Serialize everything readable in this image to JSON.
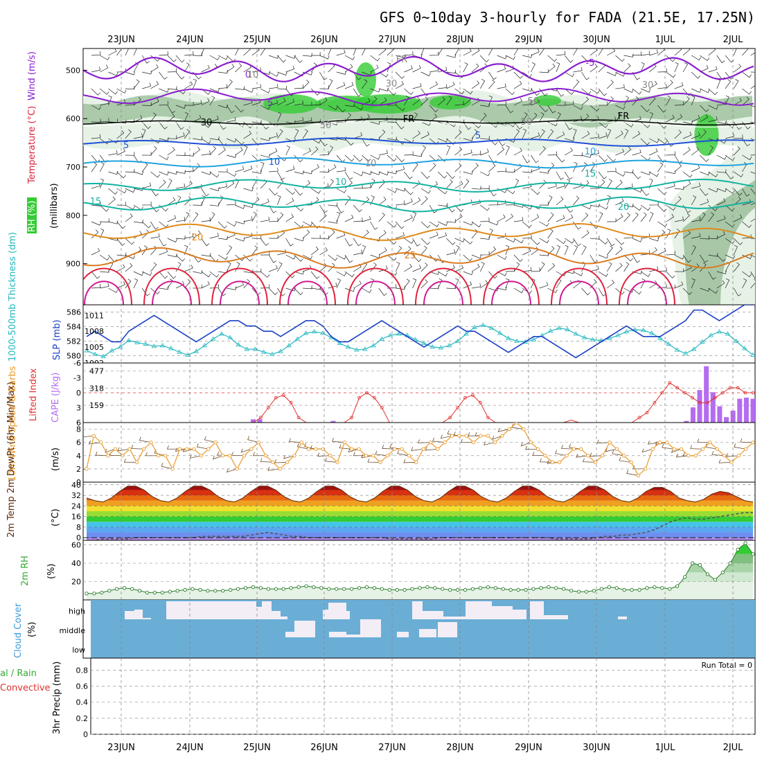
{
  "title": "GFS 0~10day 3-hourly for FADA (21.5E, 17.25N)",
  "dates": [
    "23JUN",
    "24JUN",
    "25JUN",
    "26JUN",
    "27JUN",
    "28JUN",
    "29JUN",
    "30JUN",
    "1JUL",
    "2JUL"
  ],
  "colors": {
    "rh_light": "#e6f2e6",
    "rh_mid": "#9bbf9b",
    "rh_dark": "#5f8f5f",
    "rh_bright": "#33cc33",
    "temp_neg": "#8a1ccf",
    "temp_0_10": "#1f4fd6",
    "temp_15_20": "#11b3a0",
    "temp_25_30": "#e08a1a",
    "temp_35": "#e0203a",
    "thickness": "#22b8c0",
    "slp": "#1a3fc4",
    "lifted": "#e03030",
    "cape": "#b46cf0",
    "wind": "#e89a2a",
    "cloud_bg": "#6aaed6",
    "cloud_fill": "#f3eef5"
  },
  "upper_panel": {
    "ylabel_parts": [
      "RH (%)",
      "Temperature (°C)",
      "Wind (m/s)"
    ],
    "yunit": "(millibars)",
    "ticks": [
      "500",
      "600",
      "700",
      "800",
      "900"
    ],
    "contour_labels": [
      "-5",
      "0",
      "5",
      "5",
      "5",
      "10",
      "10",
      "10",
      "15",
      "15",
      "20",
      "20",
      "25",
      "30",
      "FR",
      "FR",
      "FR",
      "10",
      "30",
      "50",
      "50",
      "50",
      "30",
      "10"
    ]
  },
  "panel_thickness": {
    "ylabel": "1000-500mb Thickness (dm)",
    "ylabel2": "SLP (mb)",
    "left_ticks": [
      "586",
      "584",
      "582",
      "580"
    ],
    "right_ticks": [
      "1011",
      "1008",
      "1005",
      "1002"
    ]
  },
  "panel_cape": {
    "ylabel": "Lifted Index",
    "ylabel2": "CAPE (J/kg)",
    "left_ticks": [
      "-6",
      "-3",
      "0",
      "3",
      "6"
    ],
    "right_ticks": [
      "477",
      "318",
      "159"
    ]
  },
  "panel_wind": {
    "ylabel": "10m Wind Speed & Barbs",
    "yunit": "(m/s)",
    "ticks": [
      "8",
      "6",
      "4",
      "2",
      "0"
    ]
  },
  "panel_temp": {
    "ylabel": "2m Temp 2m DewPt (6hr Min/Max)",
    "yunit": "(°C)",
    "ticks": [
      "40",
      "32",
      "24",
      "16",
      "8",
      "0"
    ]
  },
  "panel_rh": {
    "ylabel": "2m RH",
    "yunit": "(%)",
    "ticks": [
      "60",
      "40",
      "20"
    ]
  },
  "panel_cloud": {
    "ylabel": "Cloud Cover",
    "yunit": "(%)",
    "levels": [
      "high",
      "middle",
      "low"
    ]
  },
  "panel_precip": {
    "ylabel": "3hr Precip (mm)",
    "label_total": "tal / Rain",
    "label_conv": "Convective",
    "ticks": [
      "0.8",
      "0.6",
      "0.4",
      "0.2",
      "0"
    ],
    "run_total": "Run Total = 0"
  },
  "chart_data": [
    {
      "type": "line",
      "name": "1000-500mb Thickness",
      "ylabel": "1000-500mb Thickness (dm)",
      "ylim": [
        579,
        587
      ],
      "values": [
        580.7,
        580.2,
        579.9,
        580.7,
        581.2,
        582.1,
        581.8,
        581.6,
        581.3,
        581.4,
        581.0,
        580.5,
        580.1,
        580.6,
        581.4,
        582.3,
        583.0,
        582.5,
        581.5,
        580.9,
        580.9,
        580.5,
        580.2,
        580.6,
        581.4,
        582.3,
        583.1,
        583.3,
        583.1,
        582.5,
        581.7,
        581.2,
        580.8,
        580.9,
        581.4,
        582.3,
        582.8,
        583.0,
        582.8,
        582.2,
        581.7,
        581.2,
        581.1,
        581.4,
        582.0,
        583.0,
        583.9,
        584.2,
        583.8,
        583.1,
        582.4,
        582.0,
        581.9,
        582.2,
        582.8,
        583.4,
        583.8,
        583.6,
        583.0,
        582.5,
        582.2,
        582.1,
        582.4,
        582.8,
        583.3,
        583.6,
        583.5,
        583.1,
        582.4,
        581.6,
        580.8,
        580.3,
        580.9,
        581.9,
        582.8,
        583.3,
        583.0,
        582.0,
        581.0,
        580.1
      ]
    },
    {
      "type": "line",
      "name": "SLP",
      "ylabel": "SLP (mb)",
      "ylim": [
        1002,
        1013
      ],
      "values": [
        1007,
        1008,
        1007,
        1006,
        1006,
        1008,
        1009,
        1010,
        1011,
        1010,
        1009,
        1008,
        1007,
        1006,
        1007,
        1008,
        1009,
        1010,
        1010,
        1009,
        1009,
        1008,
        1008,
        1007,
        1008,
        1009,
        1010,
        1010,
        1009,
        1007,
        1006,
        1006,
        1007,
        1008,
        1009,
        1010,
        1009,
        1008,
        1007,
        1006,
        1005,
        1006,
        1007,
        1008,
        1009,
        1008,
        1008,
        1007,
        1006,
        1005,
        1004,
        1005,
        1006,
        1007,
        1007,
        1006,
        1005,
        1004,
        1003,
        1004,
        1005,
        1006,
        1007,
        1008,
        1009,
        1008,
        1007,
        1007,
        1007,
        1008,
        1009,
        1010,
        1012,
        1012,
        1011,
        1010,
        1011,
        1012,
        1013,
        1013
      ]
    },
    {
      "type": "line",
      "name": "Lifted Index",
      "ylabel": "Lifted Index",
      "ylim": [
        -6,
        6
      ],
      "values": [
        6,
        6,
        6,
        6,
        6,
        6,
        6,
        6,
        6,
        6,
        6,
        6,
        6,
        6,
        6,
        6,
        6,
        6,
        6,
        6,
        6,
        6,
        6,
        5,
        3,
        1,
        0.5,
        2,
        5,
        6,
        6,
        6,
        6,
        6,
        6,
        5,
        1,
        0,
        1,
        3,
        6,
        6,
        6,
        6,
        6,
        6,
        6,
        6,
        5,
        3,
        1,
        0.5,
        2,
        5,
        6,
        6,
        6,
        6,
        6,
        6,
        6,
        6,
        6,
        6,
        5.5,
        6,
        6,
        6,
        6,
        6,
        6,
        6,
        6,
        5,
        4,
        2,
        0,
        -2,
        -1,
        0,
        1,
        2,
        2,
        1,
        0,
        -1,
        -1,
        0,
        0
      ]
    },
    {
      "type": "bar",
      "name": "CAPE",
      "ylabel": "CAPE (J/kg)",
      "ylim": [
        0,
        550
      ],
      "values": [
        0,
        0,
        0,
        0,
        0,
        0,
        0,
        0,
        0,
        0,
        0,
        0,
        0,
        0,
        0,
        0,
        0,
        0,
        0,
        0,
        0,
        0,
        0,
        0,
        0,
        30,
        30,
        0,
        0,
        0,
        0,
        0,
        0,
        0,
        0,
        0,
        0,
        15,
        0,
        0,
        0,
        0,
        0,
        0,
        0,
        0,
        0,
        0,
        0,
        0,
        0,
        0,
        0,
        0,
        0,
        0,
        0,
        0,
        0,
        0,
        0,
        0,
        0,
        0,
        0,
        0,
        0,
        0,
        0,
        0,
        0,
        0,
        0,
        0,
        0,
        0,
        0,
        0,
        0,
        0,
        0,
        0,
        0,
        0,
        0,
        0,
        0,
        0,
        0,
        0,
        15,
        140,
        300,
        520,
        280,
        150,
        50,
        110,
        220,
        230,
        220
      ]
    },
    {
      "type": "line",
      "name": "10m Wind Speed",
      "ylabel": "10m Wind Speed & Barbs (m/s)",
      "ylim": [
        0,
        9
      ],
      "values": [
        2,
        7,
        6,
        4,
        5,
        4,
        5,
        3,
        5,
        6,
        4,
        4,
        2,
        5,
        5,
        5,
        4,
        5,
        6,
        4,
        4,
        2,
        4,
        5,
        6,
        4,
        3,
        2,
        3,
        4,
        6,
        5,
        5,
        5,
        4,
        3,
        6,
        5,
        5,
        4,
        4,
        3,
        4,
        5,
        5,
        4,
        3,
        5,
        6,
        5,
        6,
        7,
        7,
        7,
        6,
        7,
        7,
        6,
        7,
        8,
        9,
        8,
        6,
        5,
        4,
        3,
        3,
        4,
        5,
        5,
        4,
        3,
        4,
        6,
        5,
        4,
        3,
        1,
        2,
        5,
        6,
        6,
        5,
        5,
        4,
        4,
        5,
        6,
        5,
        4,
        3,
        4,
        5,
        6
      ]
    },
    {
      "type": "area",
      "name": "2m Temp",
      "ylabel": "2m Temp (°C)",
      "ylim": [
        -2,
        42
      ],
      "values": [
        30,
        28,
        27,
        30,
        35,
        39,
        39,
        36,
        31,
        28,
        27,
        30,
        35,
        39,
        39,
        36,
        31,
        28,
        27,
        30,
        35,
        39,
        39,
        36,
        31,
        28,
        27,
        30,
        35,
        39,
        39,
        36,
        31,
        28,
        27,
        30,
        35,
        39,
        39,
        36,
        31,
        28,
        27,
        30,
        35,
        39,
        39,
        36,
        31,
        28,
        27,
        30,
        35,
        39,
        39,
        36,
        31,
        28,
        27,
        30,
        35,
        39,
        39,
        36,
        31,
        28,
        27,
        30,
        35,
        38,
        38,
        35,
        30,
        28,
        27,
        29,
        33,
        35,
        34,
        31,
        28,
        27
      ]
    },
    {
      "type": "line",
      "name": "2m DewPt",
      "ylabel": "2m DewPt (°C)",
      "ylim": [
        -2,
        42
      ],
      "values": [
        -2,
        -2,
        -1,
        -1,
        -1,
        -1,
        0,
        0,
        0,
        0,
        0,
        0,
        0,
        0,
        1,
        1,
        1,
        1,
        1,
        1,
        2,
        3,
        4,
        3,
        2,
        1,
        1,
        0,
        0,
        0,
        0,
        0,
        0,
        0,
        0,
        0,
        0,
        -1,
        -1,
        -1,
        -1,
        -1,
        -1,
        0,
        0,
        0,
        0,
        0,
        0,
        0,
        0,
        0,
        0,
        0,
        0,
        0,
        0,
        -1,
        -1,
        -1,
        -1,
        -1,
        0,
        1,
        1,
        2,
        2,
        3,
        4,
        6,
        9,
        12,
        14,
        15,
        14,
        14,
        15,
        16,
        17,
        18,
        19,
        19
      ]
    },
    {
      "type": "area",
      "name": "2m RH",
      "ylabel": "2m RH (%)",
      "ylim": [
        0,
        65
      ],
      "values": [
        7,
        7,
        8,
        10,
        12,
        13,
        12,
        10,
        8,
        8,
        8,
        9,
        10,
        11,
        12,
        11,
        10,
        10,
        10,
        11,
        12,
        13,
        14,
        13,
        12,
        12,
        12,
        13,
        14,
        15,
        14,
        13,
        12,
        12,
        12,
        12,
        13,
        14,
        13,
        12,
        11,
        11,
        11,
        12,
        13,
        14,
        13,
        12,
        11,
        11,
        11,
        12,
        13,
        14,
        13,
        12,
        11,
        11,
        11,
        12,
        13,
        14,
        13,
        12,
        10,
        9,
        9,
        10,
        12,
        14,
        13,
        11,
        11,
        11,
        13,
        14,
        13,
        12,
        15,
        25,
        40,
        38,
        28,
        22,
        30,
        40,
        55,
        62,
        50
      ]
    },
    {
      "type": "bar",
      "name": "3hr Precip",
      "ylabel": "3hr Precip (mm)",
      "ylim": [
        0,
        0.95
      ],
      "values": [
        0,
        0,
        0,
        0,
        0,
        0,
        0,
        0,
        0,
        0
      ]
    }
  ]
}
